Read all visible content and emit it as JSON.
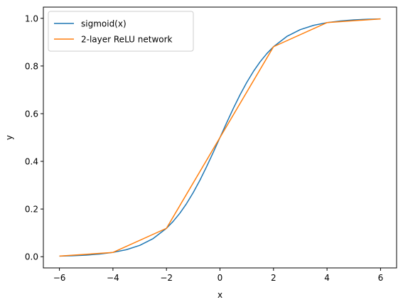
{
  "chart_data": {
    "type": "line",
    "title": "",
    "xlabel": "x",
    "ylabel": "y",
    "xlim": [
      -6.6,
      6.6
    ],
    "ylim": [
      -0.047,
      1.047
    ],
    "x_ticks": [
      -6,
      -4,
      -2,
      0,
      2,
      4,
      6
    ],
    "x_tick_labels": [
      "−6",
      "−4",
      "−2",
      "0",
      "2",
      "4",
      "6"
    ],
    "y_ticks": [
      0.0,
      0.2,
      0.4,
      0.6,
      0.8,
      1.0
    ],
    "y_tick_labels": [
      "0.0",
      "0.2",
      "0.4",
      "0.6",
      "0.8",
      "1.0"
    ],
    "grid": false,
    "legend_position": "top-left",
    "series": [
      {
        "name": "sigmoid(x)",
        "color": "#1f77b4",
        "x": [
          -6,
          -5.5,
          -5,
          -4.5,
          -4,
          -3.5,
          -3,
          -2.5,
          -2,
          -1.75,
          -1.5,
          -1.25,
          -1,
          -0.75,
          -0.5,
          -0.25,
          0,
          0.25,
          0.5,
          0.75,
          1,
          1.25,
          1.5,
          1.75,
          2,
          2.5,
          3,
          3.5,
          4,
          4.5,
          5,
          5.5,
          6
        ],
        "y": [
          0.0025,
          0.0041,
          0.0067,
          0.011,
          0.018,
          0.0293,
          0.0474,
          0.0759,
          0.1192,
          0.148,
          0.1824,
          0.2227,
          0.2689,
          0.3208,
          0.3775,
          0.4378,
          0.5,
          0.5622,
          0.6225,
          0.6792,
          0.7311,
          0.7773,
          0.8176,
          0.852,
          0.8808,
          0.9241,
          0.9526,
          0.9707,
          0.982,
          0.989,
          0.9933,
          0.9959,
          0.9975
        ]
      },
      {
        "name": "2-layer ReLU network",
        "color": "#ff7f0e",
        "x": [
          -6,
          -4,
          -2,
          0,
          2,
          4,
          6
        ],
        "y": [
          0.0025,
          0.018,
          0.1192,
          0.5,
          0.8808,
          0.982,
          0.9975
        ]
      }
    ]
  }
}
